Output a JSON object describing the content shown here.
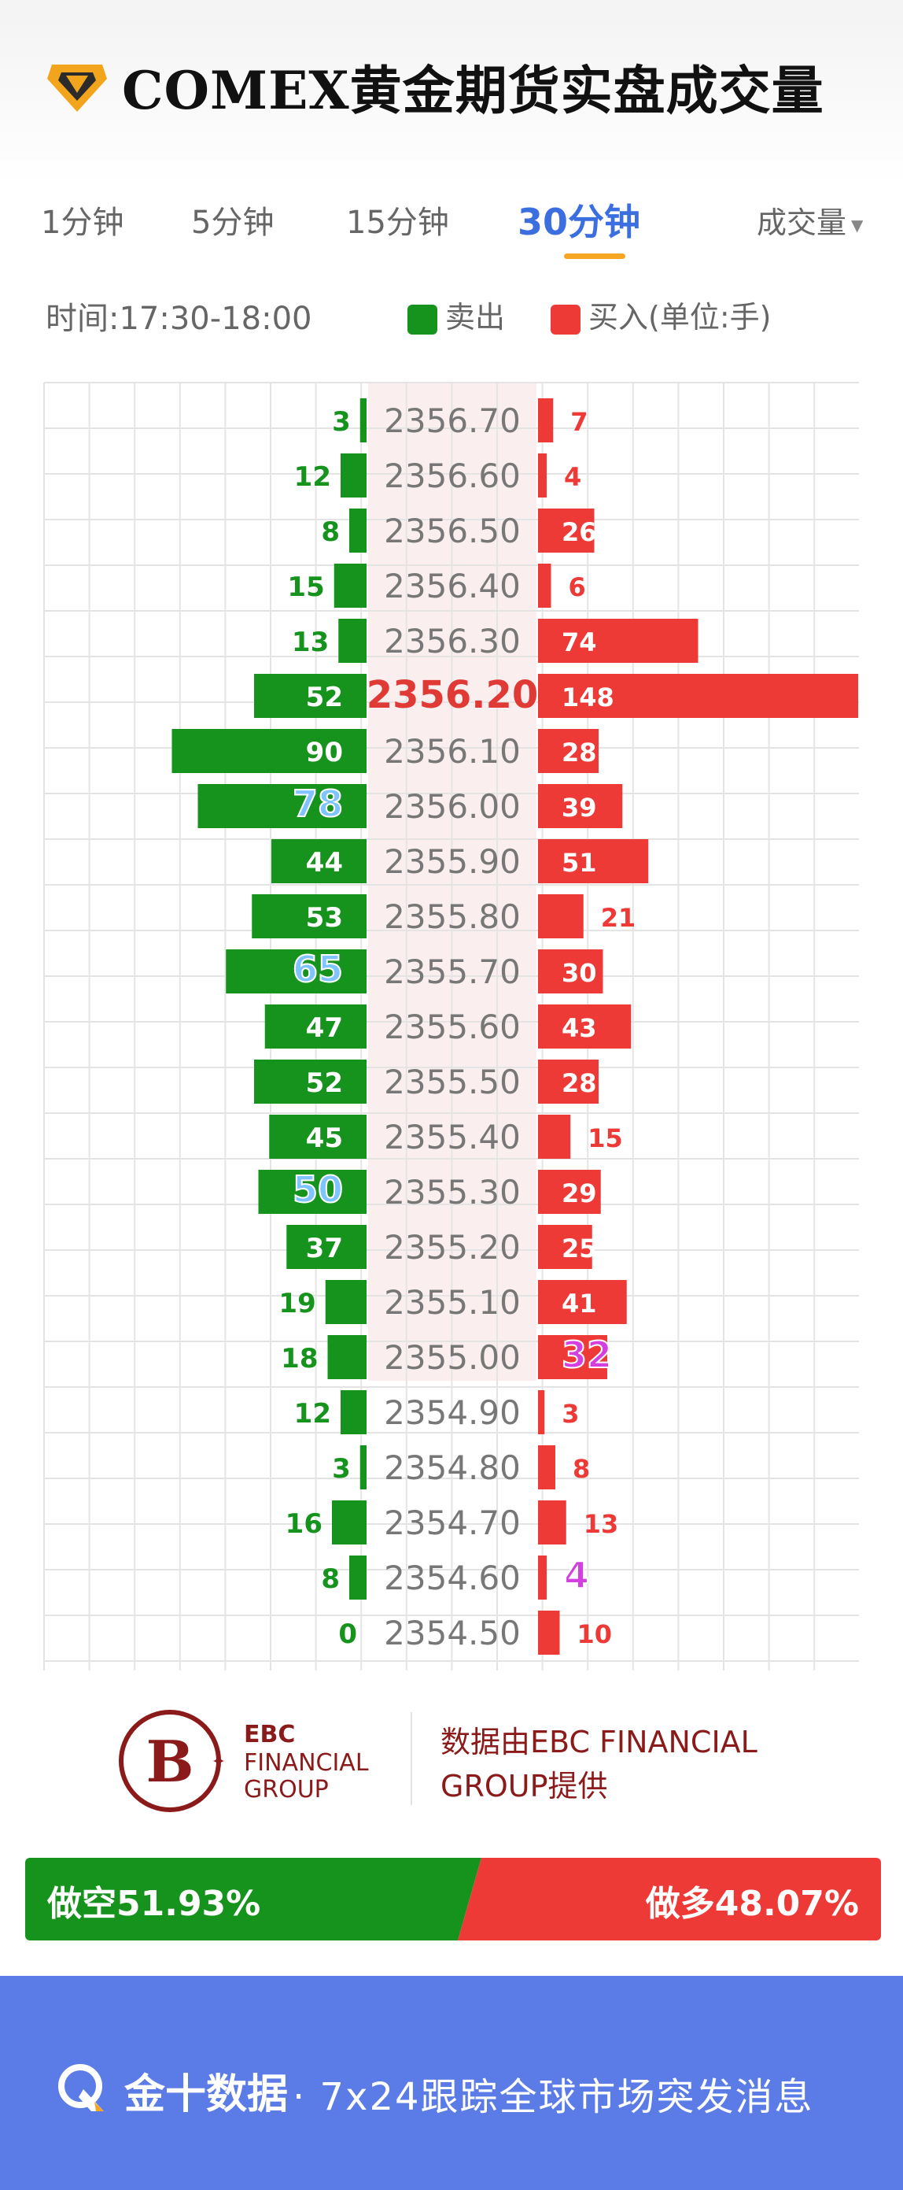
{
  "header": {
    "title": "COMEX黄金期货实盘成交量"
  },
  "tabs": [
    {
      "label": "1分钟",
      "active": false
    },
    {
      "label": "5分钟",
      "active": false
    },
    {
      "label": "15分钟",
      "active": false
    },
    {
      "label": "30分钟",
      "active": true
    }
  ],
  "dropdown": {
    "label": "成交量"
  },
  "meta": {
    "time_label": "时间:",
    "time_range": "17:30-18:00"
  },
  "legend": {
    "sell_label": "卖出",
    "buy_label": "买入(单位:手)",
    "sell_color": "#16931c",
    "buy_color": "#ee3a37"
  },
  "chart_data": {
    "type": "bar",
    "categories": [
      "2356.70",
      "2356.60",
      "2356.50",
      "2356.40",
      "2356.30",
      "2356.20",
      "2356.10",
      "2356.00",
      "2355.90",
      "2355.80",
      "2355.70",
      "2355.60",
      "2355.50",
      "2355.40",
      "2355.30",
      "2355.20",
      "2355.10",
      "2355.00",
      "2354.90",
      "2354.80",
      "2354.70",
      "2354.60",
      "2354.50"
    ],
    "highlight_price": "2356.20",
    "series": [
      {
        "name": "卖出",
        "values": [
          3,
          12,
          8,
          15,
          13,
          52,
          90,
          78,
          44,
          53,
          65,
          47,
          52,
          45,
          50,
          37,
          19,
          18,
          12,
          3,
          16,
          8,
          0
        ]
      },
      {
        "name": "买入",
        "values": [
          7,
          4,
          26,
          6,
          74,
          148,
          28,
          39,
          51,
          21,
          30,
          43,
          28,
          15,
          29,
          25,
          41,
          32,
          3,
          8,
          13,
          4,
          10
        ]
      }
    ],
    "emphasized_sell": [
      78,
      65,
      50
    ],
    "emphasized_buy": [
      32,
      4
    ]
  },
  "sponsor": {
    "brand_line1": "EBC",
    "brand_line2": "FINANCIAL",
    "brand_line3": "GROUP",
    "text_line1": "数据由EBC FINANCIAL",
    "text_line2": "GROUP提供"
  },
  "ratio": {
    "short_label": "做空51.93%",
    "long_label": "做多48.07%",
    "short_pct": 51.93,
    "long_pct": 48.07
  },
  "footer": {
    "brand": "金十数据",
    "tagline": "· 7x24跟踪全球市场突发消息"
  }
}
